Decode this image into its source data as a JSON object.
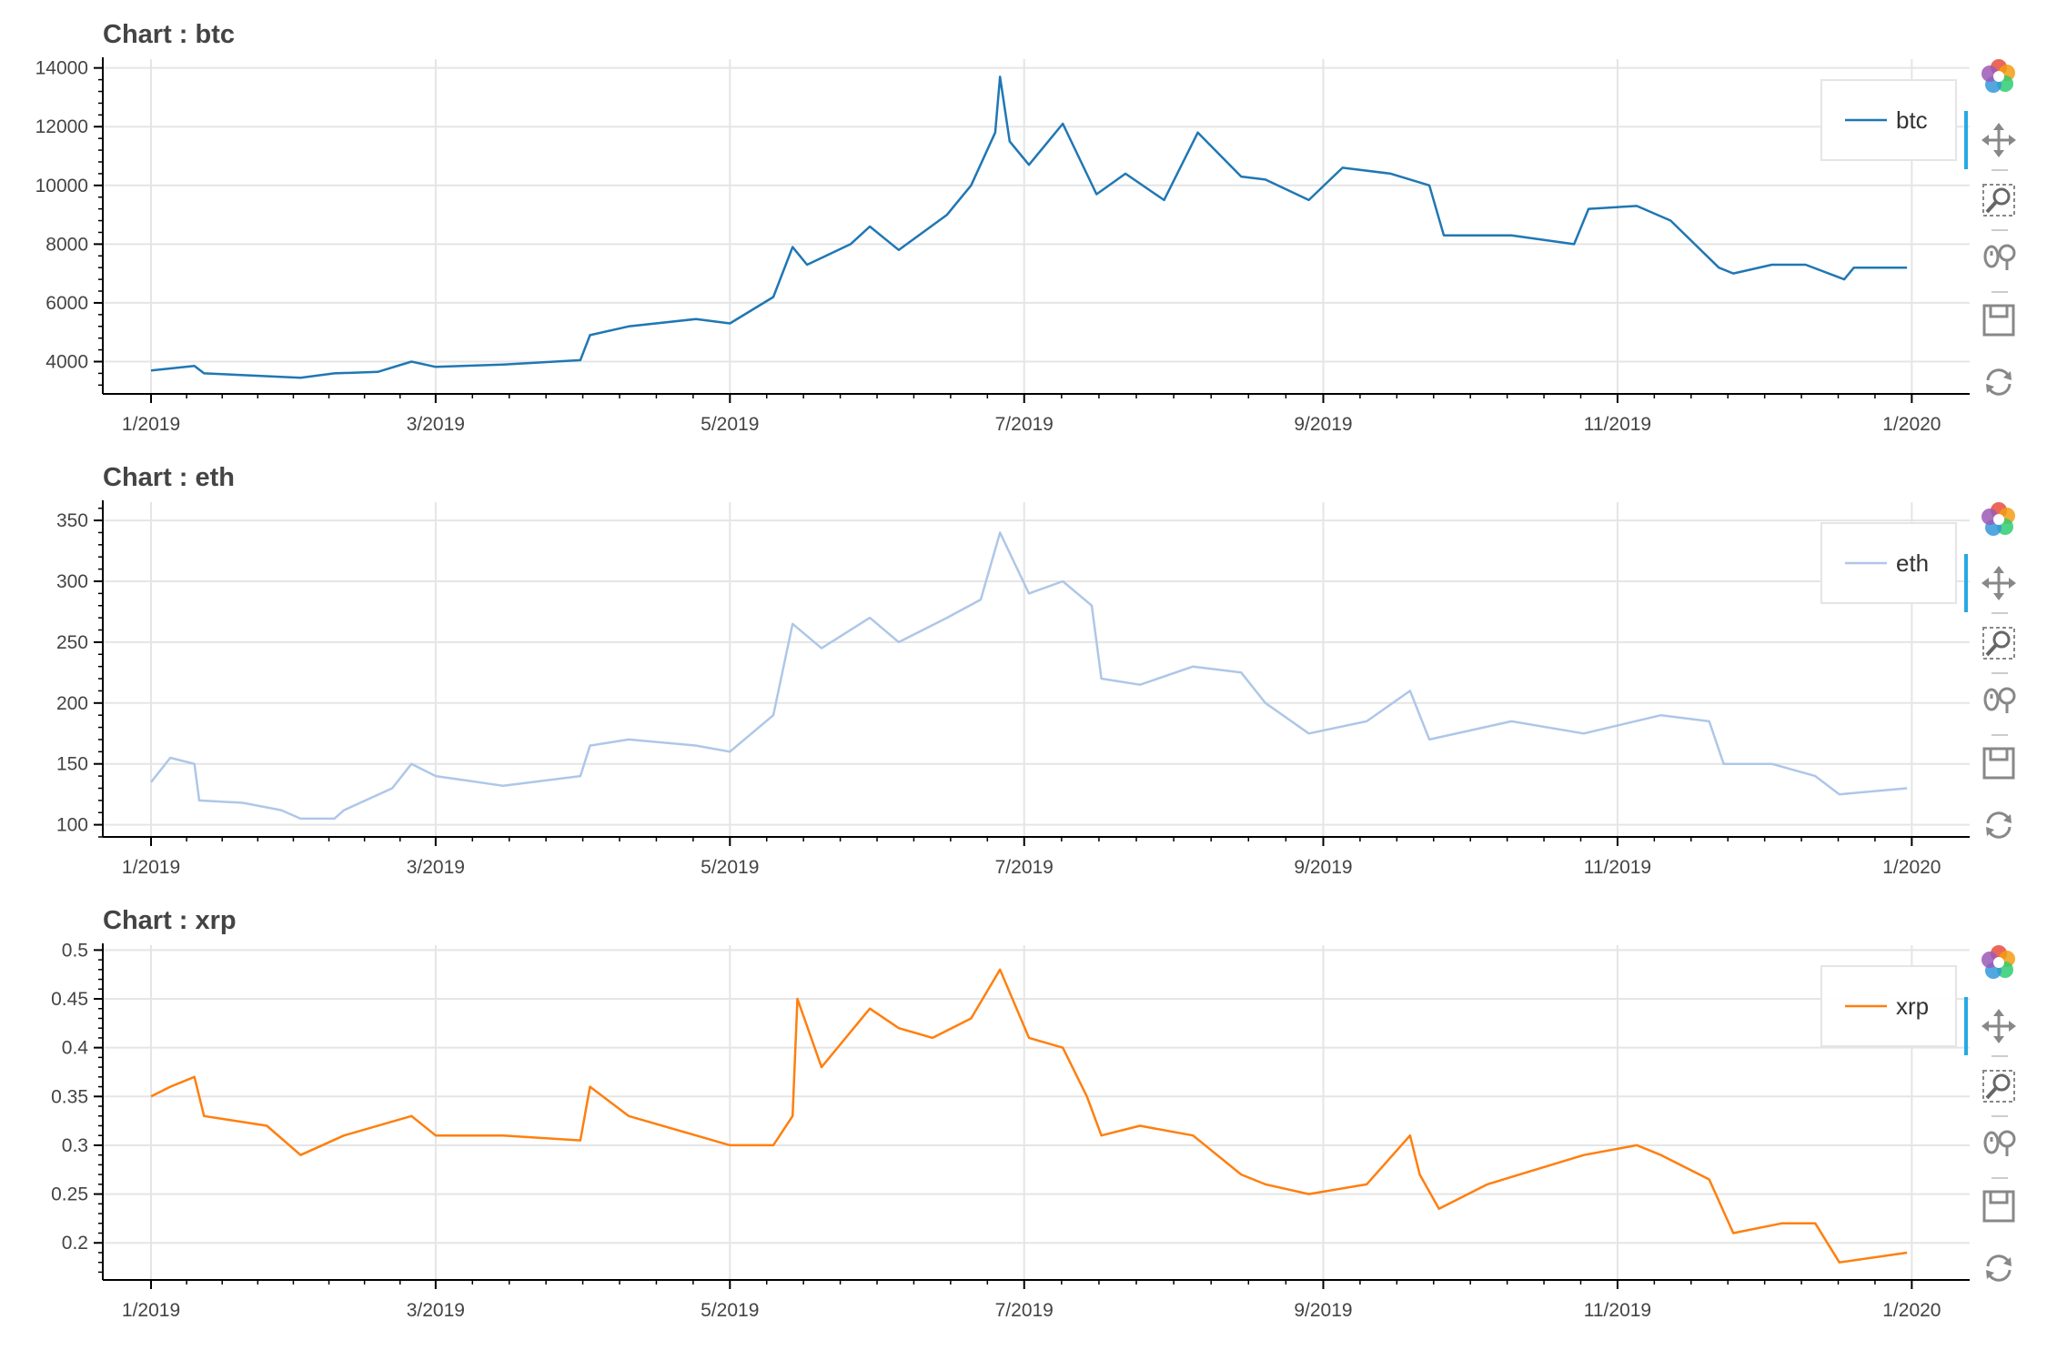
{
  "chart_data": [
    {
      "type": "line",
      "title": "Chart : btc",
      "xlabel": "",
      "ylabel": "",
      "x_tick_labels": [
        "1/2019",
        "3/2019",
        "5/2019",
        "7/2019",
        "9/2019",
        "11/2019",
        "1/2020"
      ],
      "x_range": [
        "2018-12-22",
        "2020-01-13"
      ],
      "yticks": [
        4000,
        6000,
        8000,
        10000,
        12000,
        14000
      ],
      "ylim": [
        2900,
        14300
      ],
      "grid": true,
      "legend_position": "top-right",
      "series": [
        {
          "name": "btc",
          "color": "#1f77b4",
          "x": [
            "2019-01-01",
            "2019-01-10",
            "2019-01-12",
            "2019-02-01",
            "2019-02-08",
            "2019-02-17",
            "2019-02-24",
            "2019-03-01",
            "2019-03-15",
            "2019-03-31",
            "2019-04-02",
            "2019-04-10",
            "2019-04-24",
            "2019-05-01",
            "2019-05-10",
            "2019-05-14",
            "2019-05-17",
            "2019-05-26",
            "2019-05-30",
            "2019-06-05",
            "2019-06-15",
            "2019-06-20",
            "2019-06-25",
            "2019-06-26",
            "2019-06-28",
            "2019-07-02",
            "2019-07-09",
            "2019-07-16",
            "2019-07-22",
            "2019-07-30",
            "2019-08-06",
            "2019-08-15",
            "2019-08-20",
            "2019-08-29",
            "2019-09-05",
            "2019-09-15",
            "2019-09-23",
            "2019-09-26",
            "2019-10-10",
            "2019-10-23",
            "2019-10-26",
            "2019-11-05",
            "2019-11-12",
            "2019-11-22",
            "2019-11-25",
            "2019-12-03",
            "2019-12-10",
            "2019-12-18",
            "2019-12-20",
            "2019-12-31"
          ],
          "values": [
            3700,
            3850,
            3600,
            3450,
            3600,
            3650,
            4000,
            3820,
            3900,
            4050,
            4900,
            5200,
            5450,
            5300,
            6200,
            7900,
            7300,
            8000,
            8600,
            7800,
            9000,
            10000,
            11800,
            13700,
            11500,
            10700,
            12100,
            9700,
            10400,
            9500,
            11800,
            10300,
            10200,
            9500,
            10600,
            10400,
            10000,
            8300,
            8300,
            8000,
            9200,
            9300,
            8800,
            7200,
            7000,
            7300,
            7300,
            6800,
            7200,
            7200
          ]
        }
      ]
    },
    {
      "type": "line",
      "title": "Chart : eth",
      "xlabel": "",
      "ylabel": "",
      "x_tick_labels": [
        "1/2019",
        "3/2019",
        "5/2019",
        "7/2019",
        "9/2019",
        "11/2019",
        "1/2020"
      ],
      "x_range": [
        "2018-12-22",
        "2020-01-13"
      ],
      "yticks": [
        100,
        150,
        200,
        250,
        300,
        350
      ],
      "ylim": [
        90,
        365
      ],
      "grid": true,
      "legend_position": "top-right",
      "series": [
        {
          "name": "eth",
          "color": "#aec7e8",
          "x": [
            "2019-01-01",
            "2019-01-05",
            "2019-01-10",
            "2019-01-11",
            "2019-01-20",
            "2019-01-28",
            "2019-02-01",
            "2019-02-08",
            "2019-02-10",
            "2019-02-20",
            "2019-02-24",
            "2019-03-01",
            "2019-03-15",
            "2019-03-31",
            "2019-04-02",
            "2019-04-10",
            "2019-04-24",
            "2019-05-01",
            "2019-05-10",
            "2019-05-14",
            "2019-05-20",
            "2019-05-30",
            "2019-06-05",
            "2019-06-15",
            "2019-06-22",
            "2019-06-26",
            "2019-07-02",
            "2019-07-09",
            "2019-07-15",
            "2019-07-17",
            "2019-07-25",
            "2019-08-05",
            "2019-08-15",
            "2019-08-20",
            "2019-08-29",
            "2019-09-10",
            "2019-09-19",
            "2019-09-23",
            "2019-10-10",
            "2019-10-25",
            "2019-11-10",
            "2019-11-20",
            "2019-11-23",
            "2019-12-03",
            "2019-12-12",
            "2019-12-17",
            "2019-12-31"
          ],
          "values": [
            135,
            155,
            150,
            120,
            118,
            112,
            105,
            105,
            112,
            130,
            150,
            140,
            132,
            140,
            165,
            170,
            165,
            160,
            190,
            265,
            245,
            270,
            250,
            270,
            285,
            340,
            290,
            300,
            280,
            220,
            215,
            230,
            225,
            200,
            175,
            185,
            210,
            170,
            185,
            175,
            190,
            185,
            150,
            150,
            140,
            125,
            130
          ]
        }
      ]
    },
    {
      "type": "line",
      "title": "Chart : xrp",
      "xlabel": "",
      "ylabel": "",
      "x_tick_labels": [
        "1/2019",
        "3/2019",
        "5/2019",
        "7/2019",
        "9/2019",
        "11/2019",
        "1/2020"
      ],
      "x_range": [
        "2018-12-22",
        "2020-01-13"
      ],
      "yticks": [
        0.2,
        0.25,
        0.3,
        0.35,
        0.4,
        0.45,
        0.5
      ],
      "y_tick_labels": [
        "0.2",
        "0.25",
        "0.3",
        "0.35",
        "0.4",
        "0.45",
        "0.5"
      ],
      "ylim": [
        0.162,
        0.505
      ],
      "grid": true,
      "legend_position": "top-right",
      "series": [
        {
          "name": "xrp",
          "color": "#ff7f0e",
          "x": [
            "2019-01-01",
            "2019-01-05",
            "2019-01-10",
            "2019-01-12",
            "2019-01-25",
            "2019-02-01",
            "2019-02-10",
            "2019-02-24",
            "2019-03-01",
            "2019-03-15",
            "2019-03-31",
            "2019-04-02",
            "2019-04-10",
            "2019-04-24",
            "2019-05-01",
            "2019-05-10",
            "2019-05-14",
            "2019-05-15",
            "2019-05-20",
            "2019-05-30",
            "2019-06-05",
            "2019-06-12",
            "2019-06-20",
            "2019-06-26",
            "2019-07-02",
            "2019-07-09",
            "2019-07-14",
            "2019-07-17",
            "2019-07-25",
            "2019-08-05",
            "2019-08-15",
            "2019-08-20",
            "2019-08-29",
            "2019-09-10",
            "2019-09-19",
            "2019-09-21",
            "2019-09-25",
            "2019-10-05",
            "2019-10-25",
            "2019-11-05",
            "2019-11-10",
            "2019-11-20",
            "2019-11-25",
            "2019-12-05",
            "2019-12-12",
            "2019-12-17",
            "2019-12-31"
          ],
          "values": [
            0.35,
            0.36,
            0.37,
            0.33,
            0.32,
            0.29,
            0.31,
            0.33,
            0.31,
            0.31,
            0.305,
            0.36,
            0.33,
            0.31,
            0.3,
            0.3,
            0.33,
            0.45,
            0.38,
            0.44,
            0.42,
            0.41,
            0.43,
            0.48,
            0.41,
            0.4,
            0.35,
            0.31,
            0.32,
            0.31,
            0.27,
            0.26,
            0.25,
            0.26,
            0.31,
            0.27,
            0.235,
            0.26,
            0.29,
            0.3,
            0.29,
            0.265,
            0.21,
            0.22,
            0.22,
            0.18,
            0.19
          ]
        }
      ]
    }
  ]
}
